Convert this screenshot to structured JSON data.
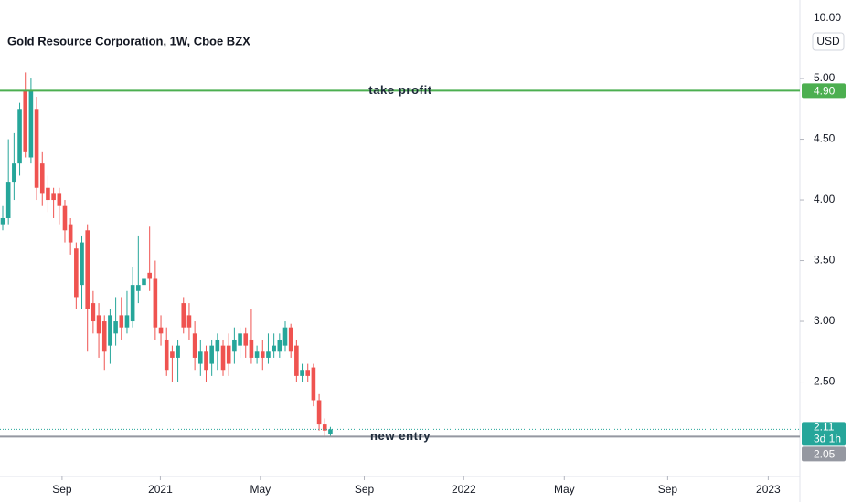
{
  "chart_data": {
    "type": "candlestick",
    "title": "Gold Resource Corporation, 1W, Cboe BZX",
    "currency": "USD",
    "price_axis_top_label": "10.00",
    "up_color": "#26a69a",
    "down_color": "#ef5350",
    "x": [
      0,
      1,
      2,
      3,
      4,
      5,
      6,
      7,
      8,
      9,
      10,
      11,
      12,
      13,
      14,
      15,
      16,
      17,
      18,
      19,
      20,
      21,
      22,
      23,
      24,
      25,
      26,
      27,
      28,
      29,
      30,
      31,
      32,
      33,
      34,
      35,
      36,
      37,
      38,
      39,
      40,
      41,
      42,
      43,
      44,
      45,
      46,
      47,
      48,
      49,
      50,
      51,
      52,
      53,
      54,
      55,
      56,
      57,
      58
    ],
    "open": [
      3.8,
      3.85,
      4.15,
      4.3,
      4.9,
      4.35,
      4.75,
      4.3,
      4.1,
      4.05,
      4.05,
      3.95,
      3.8,
      3.6,
      3.3,
      3.75,
      3.15,
      3.05,
      3.0,
      2.8,
      2.9,
      3.05,
      2.95,
      3.0,
      3.25,
      3.3,
      3.4,
      3.35,
      2.95,
      2.85,
      2.75,
      2.7,
      3.15,
      3.05,
      2.9,
      2.65,
      2.75,
      2.65,
      2.75,
      2.8,
      2.8,
      2.75,
      2.8,
      2.9,
      2.85,
      2.7,
      2.75,
      2.7,
      2.75,
      2.75,
      2.8,
      2.95,
      2.8,
      2.55,
      2.6,
      2.62,
      2.35,
      2.15,
      2.07
    ],
    "high": [
      3.95,
      4.5,
      4.55,
      4.8,
      5.05,
      5.0,
      4.85,
      4.4,
      4.2,
      4.1,
      4.1,
      4.0,
      3.85,
      3.65,
      3.7,
      3.8,
      3.25,
      3.15,
      3.05,
      3.1,
      3.2,
      3.2,
      3.25,
      3.45,
      3.7,
      3.6,
      3.78,
      3.5,
      3.05,
      2.95,
      2.8,
      2.85,
      3.2,
      3.15,
      3.0,
      2.85,
      2.8,
      2.85,
      2.9,
      2.85,
      2.9,
      2.95,
      2.95,
      2.95,
      3.1,
      2.8,
      2.85,
      2.9,
      2.9,
      2.9,
      3.0,
      2.98,
      2.85,
      2.65,
      2.65,
      2.65,
      2.4,
      2.2,
      2.13
    ],
    "low": [
      3.75,
      3.8,
      4.0,
      4.2,
      4.35,
      4.3,
      4.0,
      3.95,
      3.9,
      3.85,
      3.8,
      3.65,
      3.55,
      3.1,
      3.1,
      2.75,
      2.9,
      2.7,
      2.6,
      2.65,
      2.8,
      2.85,
      2.9,
      2.95,
      3.15,
      3.2,
      3.25,
      2.85,
      2.8,
      2.55,
      2.5,
      2.5,
      2.9,
      2.85,
      2.6,
      2.55,
      2.5,
      2.55,
      2.6,
      2.55,
      2.55,
      2.65,
      2.7,
      2.7,
      2.65,
      2.65,
      2.6,
      2.65,
      2.7,
      2.7,
      2.75,
      2.7,
      2.5,
      2.5,
      2.5,
      2.3,
      2.1,
      2.05,
      2.05
    ],
    "close": [
      3.85,
      4.15,
      4.3,
      4.75,
      4.4,
      4.9,
      4.1,
      4.05,
      4.0,
      4.0,
      3.95,
      3.75,
      3.65,
      3.2,
      3.65,
      3.1,
      3.0,
      2.9,
      2.75,
      3.05,
      3.0,
      2.95,
      3.05,
      3.3,
      3.3,
      3.35,
      3.35,
      2.95,
      2.9,
      2.6,
      2.7,
      2.8,
      2.95,
      2.95,
      2.7,
      2.75,
      2.6,
      2.8,
      2.85,
      2.6,
      2.65,
      2.85,
      2.9,
      2.8,
      2.7,
      2.75,
      2.7,
      2.75,
      2.8,
      2.85,
      2.95,
      2.75,
      2.55,
      2.6,
      2.55,
      2.35,
      2.15,
      2.1,
      2.11
    ],
    "xlim": [
      -0.5,
      140.6
    ],
    "xticks": [
      {
        "value": 10.5,
        "label": "Sep"
      },
      {
        "value": 27.9,
        "label": "2021"
      },
      {
        "value": 45.6,
        "label": "May"
      },
      {
        "value": 64,
        "label": "Sep"
      },
      {
        "value": 81.6,
        "label": "2022"
      },
      {
        "value": 99.4,
        "label": "May"
      },
      {
        "value": 117.7,
        "label": "Sep"
      },
      {
        "value": 135.5,
        "label": "2023"
      }
    ],
    "ylim": [
      1.722,
      5.647
    ],
    "yticks": [
      {
        "value": 2.5,
        "label": "2.50"
      },
      {
        "value": 3,
        "label": "3.00"
      },
      {
        "value": 3.5,
        "label": "3.50"
      },
      {
        "value": 4,
        "label": "4.00"
      },
      {
        "value": 4.5,
        "label": "4.50"
      },
      {
        "value": 5,
        "label": "5.00"
      }
    ],
    "hlines": [
      {
        "label": "take profit",
        "value": 4.9,
        "price_label": "4.90",
        "color": "#4caf50"
      },
      {
        "label": "new entry",
        "value": 2.05,
        "price_label": "2.05",
        "color": "#9598a1"
      }
    ],
    "last_price": {
      "value": 2.11,
      "countdown": "3d 1h",
      "color": "#26a69a"
    }
  }
}
